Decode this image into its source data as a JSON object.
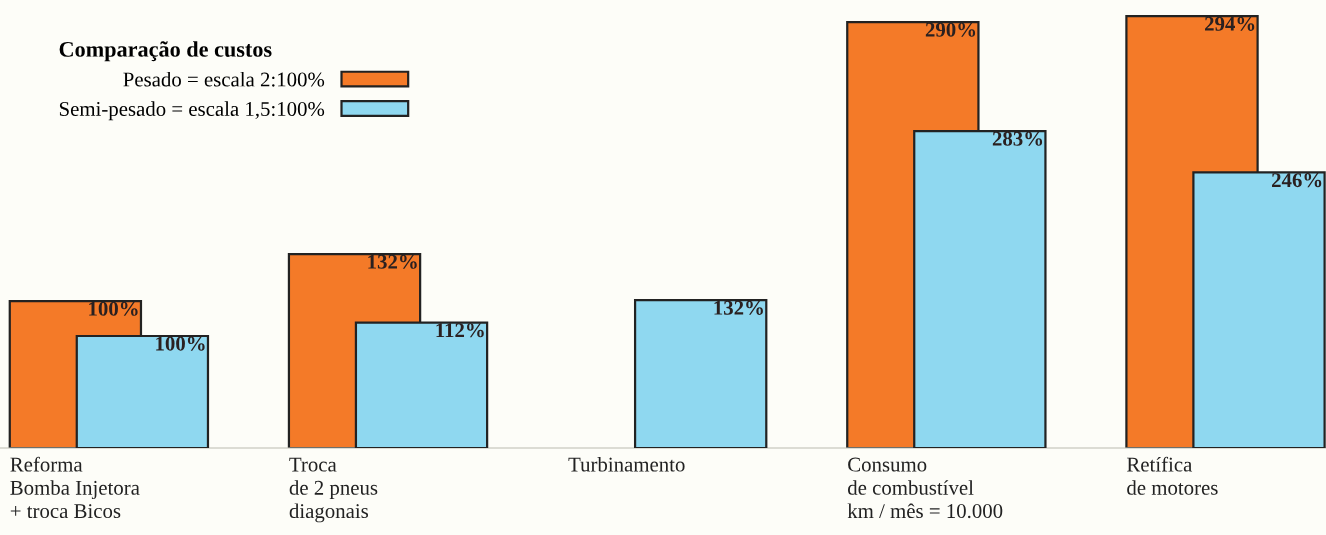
{
  "chart_data": {
    "type": "bar",
    "legend_title": "Comparação de custos",
    "categories": [
      "Reforma\nBomba Injetora\n+ troca Bicos",
      "Troca\nde 2 pneus\ndiagonais",
      "Turbinamento",
      "Consumo\nde combustível\nkm / mês = 10.000",
      "Retífica\nde motores"
    ],
    "series": [
      {
        "name": "Pesado = escala 2:100%",
        "color": "#f47a28",
        "values": [
          100,
          132,
          null,
          290,
          294
        ],
        "value_labels": [
          "100%",
          "132%",
          null,
          "290%",
          "294%"
        ]
      },
      {
        "name": "Semi-pesado = escala 1,5:100%",
        "color": "#8fd8f0",
        "axis": "y2",
        "values": [
          100,
          112,
          132,
          283,
          246
        ],
        "value_labels": [
          "100%",
          "112%",
          "132%",
          "283%",
          "246%"
        ]
      }
    ],
    "ylim": [
      0,
      305
    ],
    "y2lim": [
      0,
      400
    ],
    "legend": "top left"
  }
}
